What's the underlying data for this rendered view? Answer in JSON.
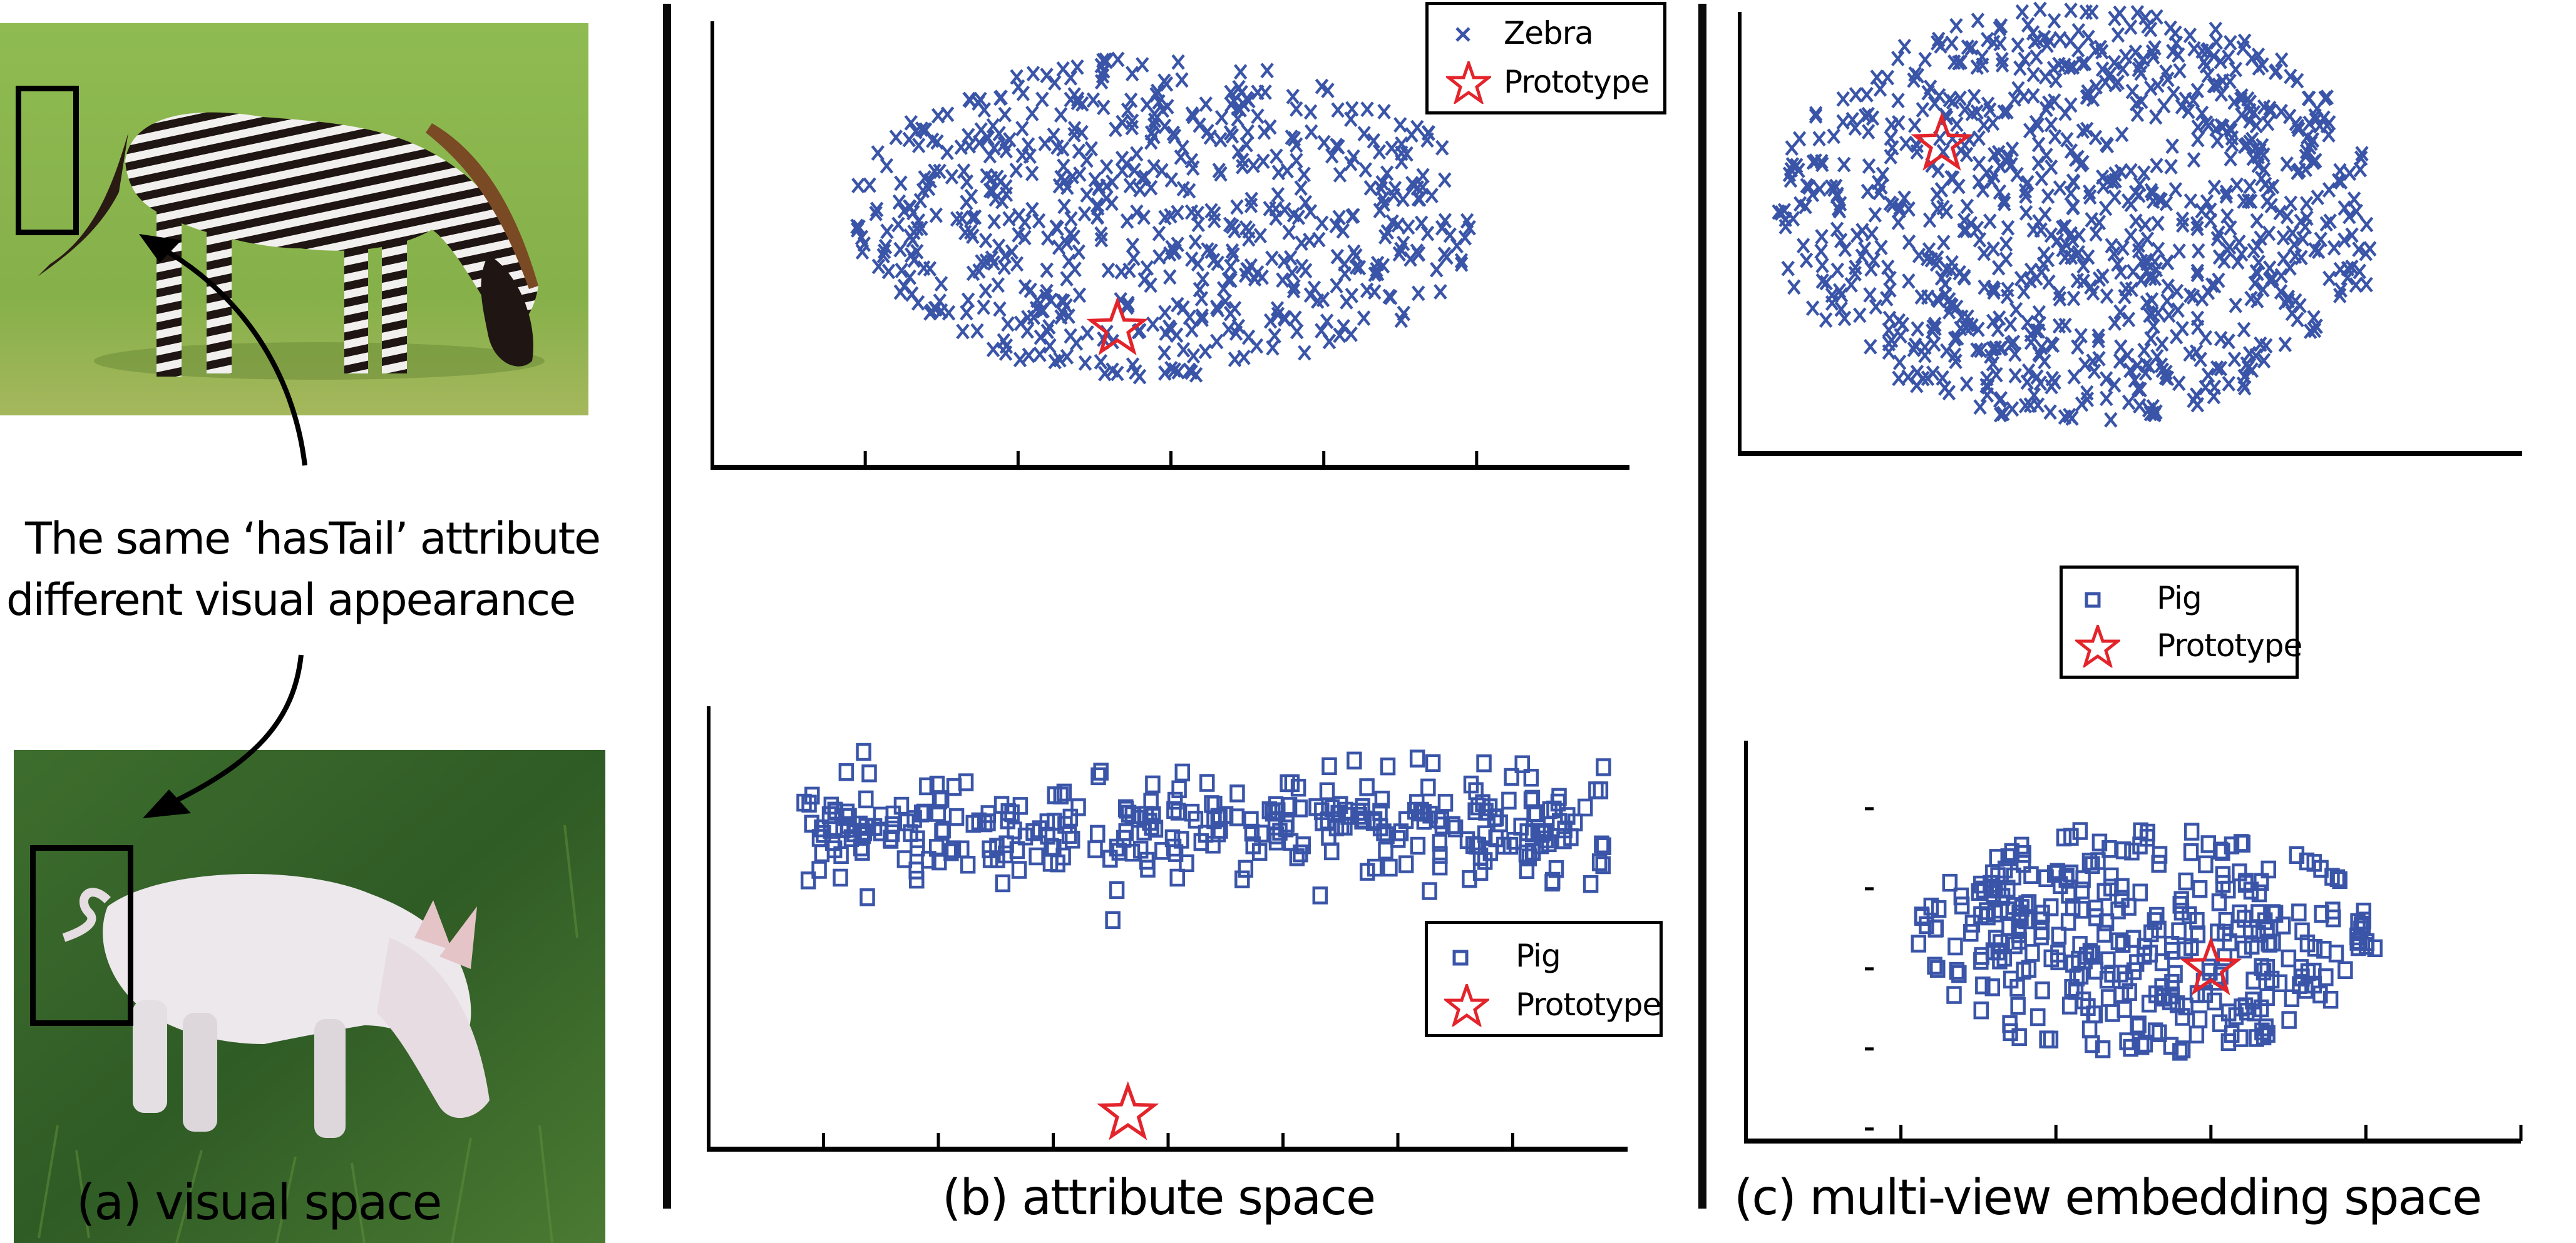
{
  "panels": {
    "a": {
      "caption": "(a) visual space",
      "annotation_line1": "The same ‘hasTail’ attribute",
      "annotation_line2": "different visual appearance",
      "zebra_photo": "zebra grazing photo",
      "pig_photo": "pig grazing photo"
    },
    "b": {
      "caption": "(b) attribute space"
    },
    "c": {
      "caption": "(c) multi-view embedding space"
    }
  },
  "legends": {
    "zebra": {
      "series_label": "Zebra",
      "prototype_label": "Prototype"
    },
    "pig": {
      "series_label": "Pig",
      "prototype_label": "Prototype"
    }
  },
  "colors": {
    "points": "#3a55a8",
    "prototype": "#e3242b",
    "axis": "#000000",
    "zebra_grass": "#86b24a",
    "pig_grass": "#3d6b2a"
  },
  "chart_data": [
    {
      "id": "b-zebra",
      "type": "scatter",
      "title": "attribute space - Zebra",
      "marker": "x",
      "xlim": [
        0,
        12
      ],
      "ylim": [
        0,
        10
      ],
      "xticks": [
        2,
        4,
        6,
        8,
        10
      ],
      "legend": "top-right",
      "series": [
        {
          "name": "Zebra",
          "cluster": {
            "cx": 5.9,
            "cy": 5.6,
            "rx": 4.1,
            "ry": 3.6,
            "n": 620,
            "seed": 11
          }
        }
      ],
      "prototype": {
        "name": "Prototype",
        "x": 5.3,
        "y": 3.1
      }
    },
    {
      "id": "b-pig",
      "type": "scatter",
      "title": "attribute space - Pig",
      "marker": "square",
      "xlim": [
        0,
        16
      ],
      "ylim": [
        0,
        10
      ],
      "xticks": [
        2,
        4,
        6,
        8,
        10,
        12,
        14
      ],
      "legend": "right",
      "series": [
        {
          "name": "Pig",
          "cluster": {
            "cx": 8.6,
            "cy": 7.3,
            "rx": 7.0,
            "ry": 1.3,
            "n": 330,
            "seed": 23
          }
        }
      ],
      "prototype": {
        "name": "Prototype",
        "x": 7.3,
        "y": 0.8
      }
    },
    {
      "id": "c-zebra",
      "type": "scatter",
      "title": "multi-view embedding space - Zebra",
      "marker": "x",
      "xlim": [
        0,
        12
      ],
      "ylim": [
        0,
        10
      ],
      "xticks": [],
      "legend": "none",
      "series": [
        {
          "name": "Zebra",
          "cluster": {
            "cx": 5.2,
            "cy": 5.4,
            "rx": 4.7,
            "ry": 4.7,
            "n": 900,
            "seed": 37
          }
        }
      ],
      "prototype": {
        "name": "Prototype",
        "x": 3.1,
        "y": 7.0
      }
    },
    {
      "id": "c-pig",
      "type": "scatter",
      "title": "multi-view embedding space - Pig",
      "marker": "square",
      "xlim": [
        0,
        5
      ],
      "ylim": [
        0,
        5
      ],
      "xticks": [
        1,
        2,
        3,
        4,
        5
      ],
      "yticks": [
        0.15,
        1.15,
        2.15,
        3.15,
        4.15
      ],
      "legend": "top",
      "series": [
        {
          "name": "Pig",
          "cluster": {
            "cx": 2.6,
            "cy": 2.5,
            "rx": 1.6,
            "ry": 1.6,
            "n": 330,
            "seed": 51
          }
        }
      ],
      "prototype": {
        "name": "Prototype",
        "x": 3.0,
        "y": 2.15
      }
    }
  ]
}
